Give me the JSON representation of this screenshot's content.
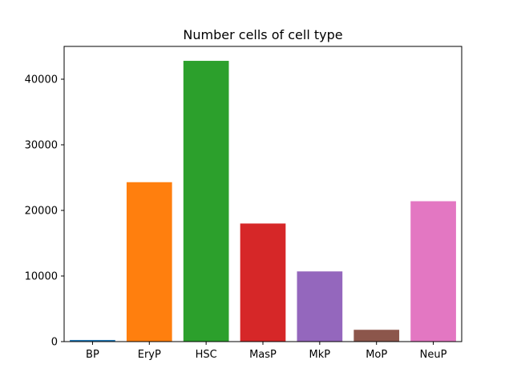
{
  "chart_data": {
    "type": "bar",
    "title": "Number cells of cell type",
    "xlabel": "",
    "ylabel": "",
    "categories": [
      "BP",
      "EryP",
      "HSC",
      "MasP",
      "MkP",
      "MoP",
      "NeuP"
    ],
    "values": [
      250,
      24300,
      42800,
      18000,
      10700,
      1800,
      21400
    ],
    "colors": [
      "#1f77b4",
      "#ff7f0e",
      "#2ca02c",
      "#d62728",
      "#9467bd",
      "#8c564b",
      "#e377c2"
    ],
    "ylim": [
      0,
      45000
    ],
    "yticks": [
      0,
      10000,
      20000,
      30000,
      40000
    ],
    "ytick_labels": [
      "0",
      "10000",
      "20000",
      "30000",
      "40000"
    ],
    "grid": false,
    "legend": "none"
  }
}
